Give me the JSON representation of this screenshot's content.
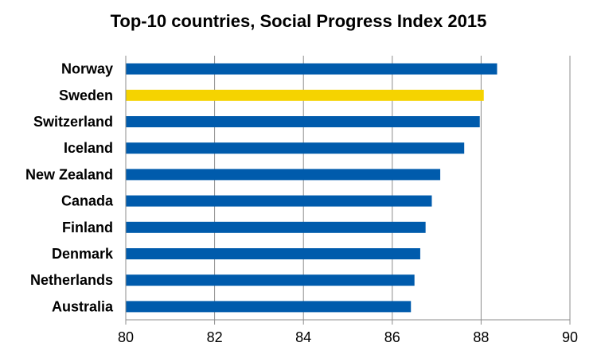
{
  "chart_data": {
    "type": "bar",
    "orientation": "horizontal",
    "title": "Top-10 countries, Social Progress Index 2015",
    "xlabel": "",
    "ylabel": "",
    "categories": [
      "Norway",
      "Sweden",
      "Switzerland",
      "Iceland",
      "New Zealand",
      "Canada",
      "Finland",
      "Denmark",
      "Netherlands",
      "Australia"
    ],
    "values": [
      88.36,
      88.06,
      87.97,
      87.62,
      87.08,
      86.89,
      86.75,
      86.63,
      86.5,
      86.42
    ],
    "highlight": "Sweden",
    "bar_color": "#005BAC",
    "highlight_color": "#F5D300",
    "xlim": [
      80,
      90
    ],
    "xticks": [
      80,
      82,
      84,
      86,
      88,
      90
    ],
    "grid": "vertical",
    "legend": "none"
  }
}
